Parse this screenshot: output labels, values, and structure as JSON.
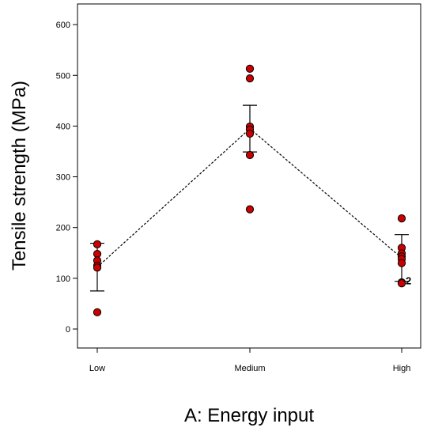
{
  "chart_data": {
    "type": "scatter",
    "xlabel": "A: Energy input",
    "ylabel": "Tensile strength (MPa)",
    "ylim": [
      -40,
      640
    ],
    "yticks": [
      0,
      100,
      200,
      300,
      400,
      500,
      600
    ],
    "categories": [
      "Low",
      "Medium",
      "High"
    ],
    "observations": [
      {
        "category": "Low",
        "values": [
          167,
          148,
          135,
          125,
          121,
          33
        ]
      },
      {
        "category": "Medium",
        "values": [
          513,
          494,
          399,
          393,
          385,
          343,
          236
        ]
      },
      {
        "category": "High",
        "values": [
          218,
          160,
          149,
          143,
          138,
          130,
          92,
          90
        ]
      }
    ],
    "means": [
      122,
      395,
      140
    ],
    "error_bars": [
      {
        "category": "Low",
        "low": 75,
        "high": 169
      },
      {
        "category": "Medium",
        "low": 349,
        "high": 441
      },
      {
        "category": "High",
        "low": 94,
        "high": 186
      }
    ],
    "annotations": [
      {
        "category": "High",
        "text": "2",
        "y": 96
      }
    ],
    "point_color": "#cc0000",
    "mean_line_style": "dashed",
    "grid": false
  }
}
